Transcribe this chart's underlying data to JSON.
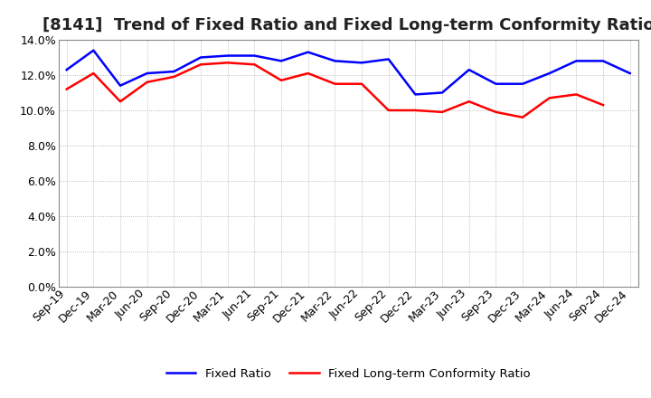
{
  "title": "[8141]  Trend of Fixed Ratio and Fixed Long-term Conformity Ratio",
  "x_labels": [
    "Sep-19",
    "Dec-19",
    "Mar-20",
    "Jun-20",
    "Sep-20",
    "Dec-20",
    "Mar-21",
    "Jun-21",
    "Sep-21",
    "Dec-21",
    "Mar-22",
    "Jun-22",
    "Sep-22",
    "Dec-22",
    "Mar-23",
    "Jun-23",
    "Sep-23",
    "Dec-23",
    "Mar-24",
    "Jun-24",
    "Sep-24",
    "Dec-24"
  ],
  "fixed_ratio": [
    12.3,
    13.4,
    11.4,
    12.1,
    12.2,
    13.0,
    13.1,
    13.1,
    12.8,
    13.3,
    12.8,
    12.7,
    12.9,
    10.9,
    11.0,
    12.3,
    11.5,
    11.5,
    12.1,
    12.8,
    12.8,
    12.1
  ],
  "fixed_lt_ratio": [
    11.2,
    12.1,
    10.5,
    11.6,
    11.9,
    12.6,
    12.7,
    12.6,
    11.7,
    12.1,
    11.5,
    11.5,
    10.0,
    10.0,
    9.9,
    10.5,
    9.9,
    9.6,
    10.7,
    10.9,
    10.3,
    null
  ],
  "fixed_ratio_color": "#0000FF",
  "fixed_lt_ratio_color": "#FF0000",
  "ylim": [
    0,
    14.0
  ],
  "yticks": [
    0,
    2.0,
    4.0,
    6.0,
    8.0,
    10.0,
    12.0,
    14.0
  ],
  "background_color": "#FFFFFF",
  "grid_color": "#AAAAAA",
  "legend_fixed": "Fixed Ratio",
  "legend_lt": "Fixed Long-term Conformity Ratio",
  "title_fontsize": 13,
  "tick_fontsize": 9
}
